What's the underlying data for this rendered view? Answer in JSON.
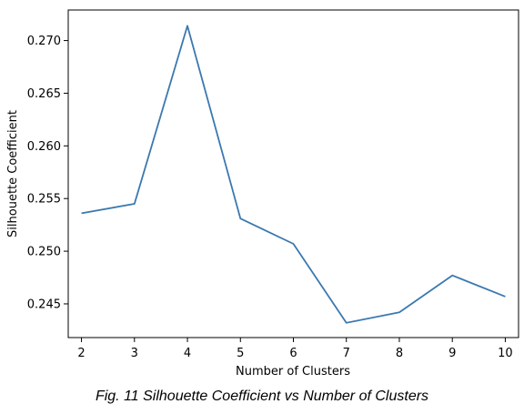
{
  "chart_data": {
    "type": "line",
    "x": [
      2,
      3,
      4,
      5,
      6,
      7,
      8,
      9,
      10
    ],
    "series": [
      {
        "values": [
          0.2536,
          0.2545,
          0.2714,
          0.2531,
          0.2507,
          0.2432,
          0.2442,
          0.2477,
          0.2457
        ]
      }
    ],
    "xlabel": "Number of Clusters",
    "ylabel": "Silhouette Coefficient",
    "xlim": [
      1.75,
      10.25
    ],
    "ylim": [
      0.2418,
      0.2729
    ],
    "xticks": [
      "2",
      "3",
      "4",
      "5",
      "6",
      "7",
      "8",
      "9",
      "10"
    ],
    "yticks": [
      "0.245",
      "0.250",
      "0.255",
      "0.260",
      "0.265",
      "0.270"
    ],
    "ytick_values": [
      0.245,
      0.25,
      0.255,
      0.26,
      0.265,
      0.27
    ],
    "grid": false,
    "line_color": "#3b78b0"
  },
  "caption": "Fig. 11 Silhouette Coefficient vs Number of Clusters"
}
